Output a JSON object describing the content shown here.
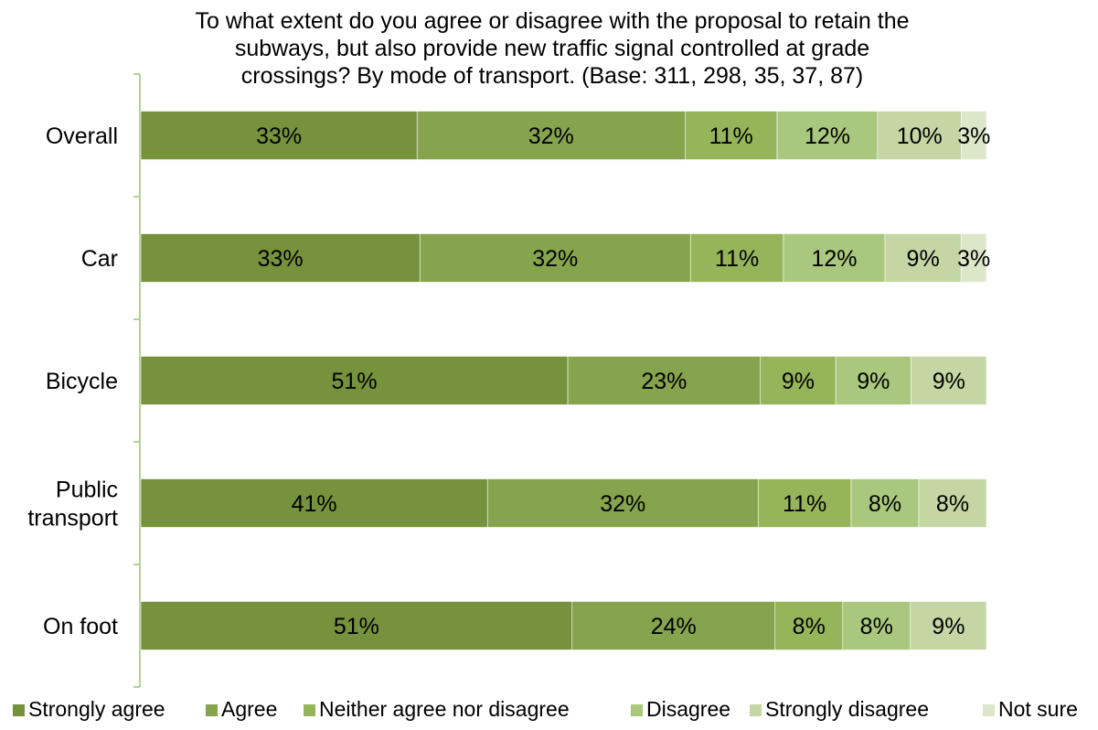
{
  "chart_data": {
    "type": "bar",
    "orientation": "horizontal",
    "stacked": true,
    "title_lines": [
      "To what extent do you agree or disagree with the proposal to retain the",
      "subways, but also provide new traffic signal controlled at grade",
      "crossings? By mode of transport. (Base: 311, 298, 35, 37, 87)"
    ],
    "categories": [
      "Overall",
      "Car",
      "Bicycle",
      "Public transport",
      "On foot"
    ],
    "category_label_lines": [
      [
        "Overall"
      ],
      [
        "Car"
      ],
      [
        "Bicycle"
      ],
      [
        "Public",
        "transport"
      ],
      [
        "On foot"
      ]
    ],
    "series": [
      {
        "name": "Strongly agree",
        "color": "#76923c",
        "values": [
          33,
          33,
          51,
          41,
          51
        ],
        "labels": [
          "33%",
          "33%",
          "51%",
          "41%",
          "51%"
        ]
      },
      {
        "name": "Agree",
        "color": "#86a34d",
        "values": [
          32,
          32,
          23,
          32,
          24
        ],
        "labels": [
          "32%",
          "32%",
          "23%",
          "32%",
          "24%"
        ]
      },
      {
        "name": "Neither agree nor disagree",
        "color": "#96b55a",
        "values": [
          11,
          11,
          9,
          11,
          8
        ],
        "labels": [
          "11%",
          "11%",
          "9%",
          "11%",
          "8%"
        ]
      },
      {
        "name": "Disagree",
        "color": "#aac77e",
        "values": [
          12,
          12,
          9,
          8,
          8
        ],
        "labels": [
          "12%",
          "12%",
          "9%",
          "8%",
          "8%"
        ]
      },
      {
        "name": "Strongly disagree",
        "color": "#c3d6a4",
        "values": [
          10,
          9,
          9,
          8,
          9
        ],
        "labels": [
          "10%",
          "9%",
          "9%",
          "8%",
          "9%"
        ]
      },
      {
        "name": "Not sure",
        "color": "#dbe7c8",
        "values": [
          3,
          3,
          0,
          0,
          0
        ],
        "labels": [
          "3%",
          "3%",
          "",
          "",
          ""
        ]
      }
    ],
    "legend_position": "bottom",
    "grid": false,
    "axis_color": "#b7cf96"
  }
}
